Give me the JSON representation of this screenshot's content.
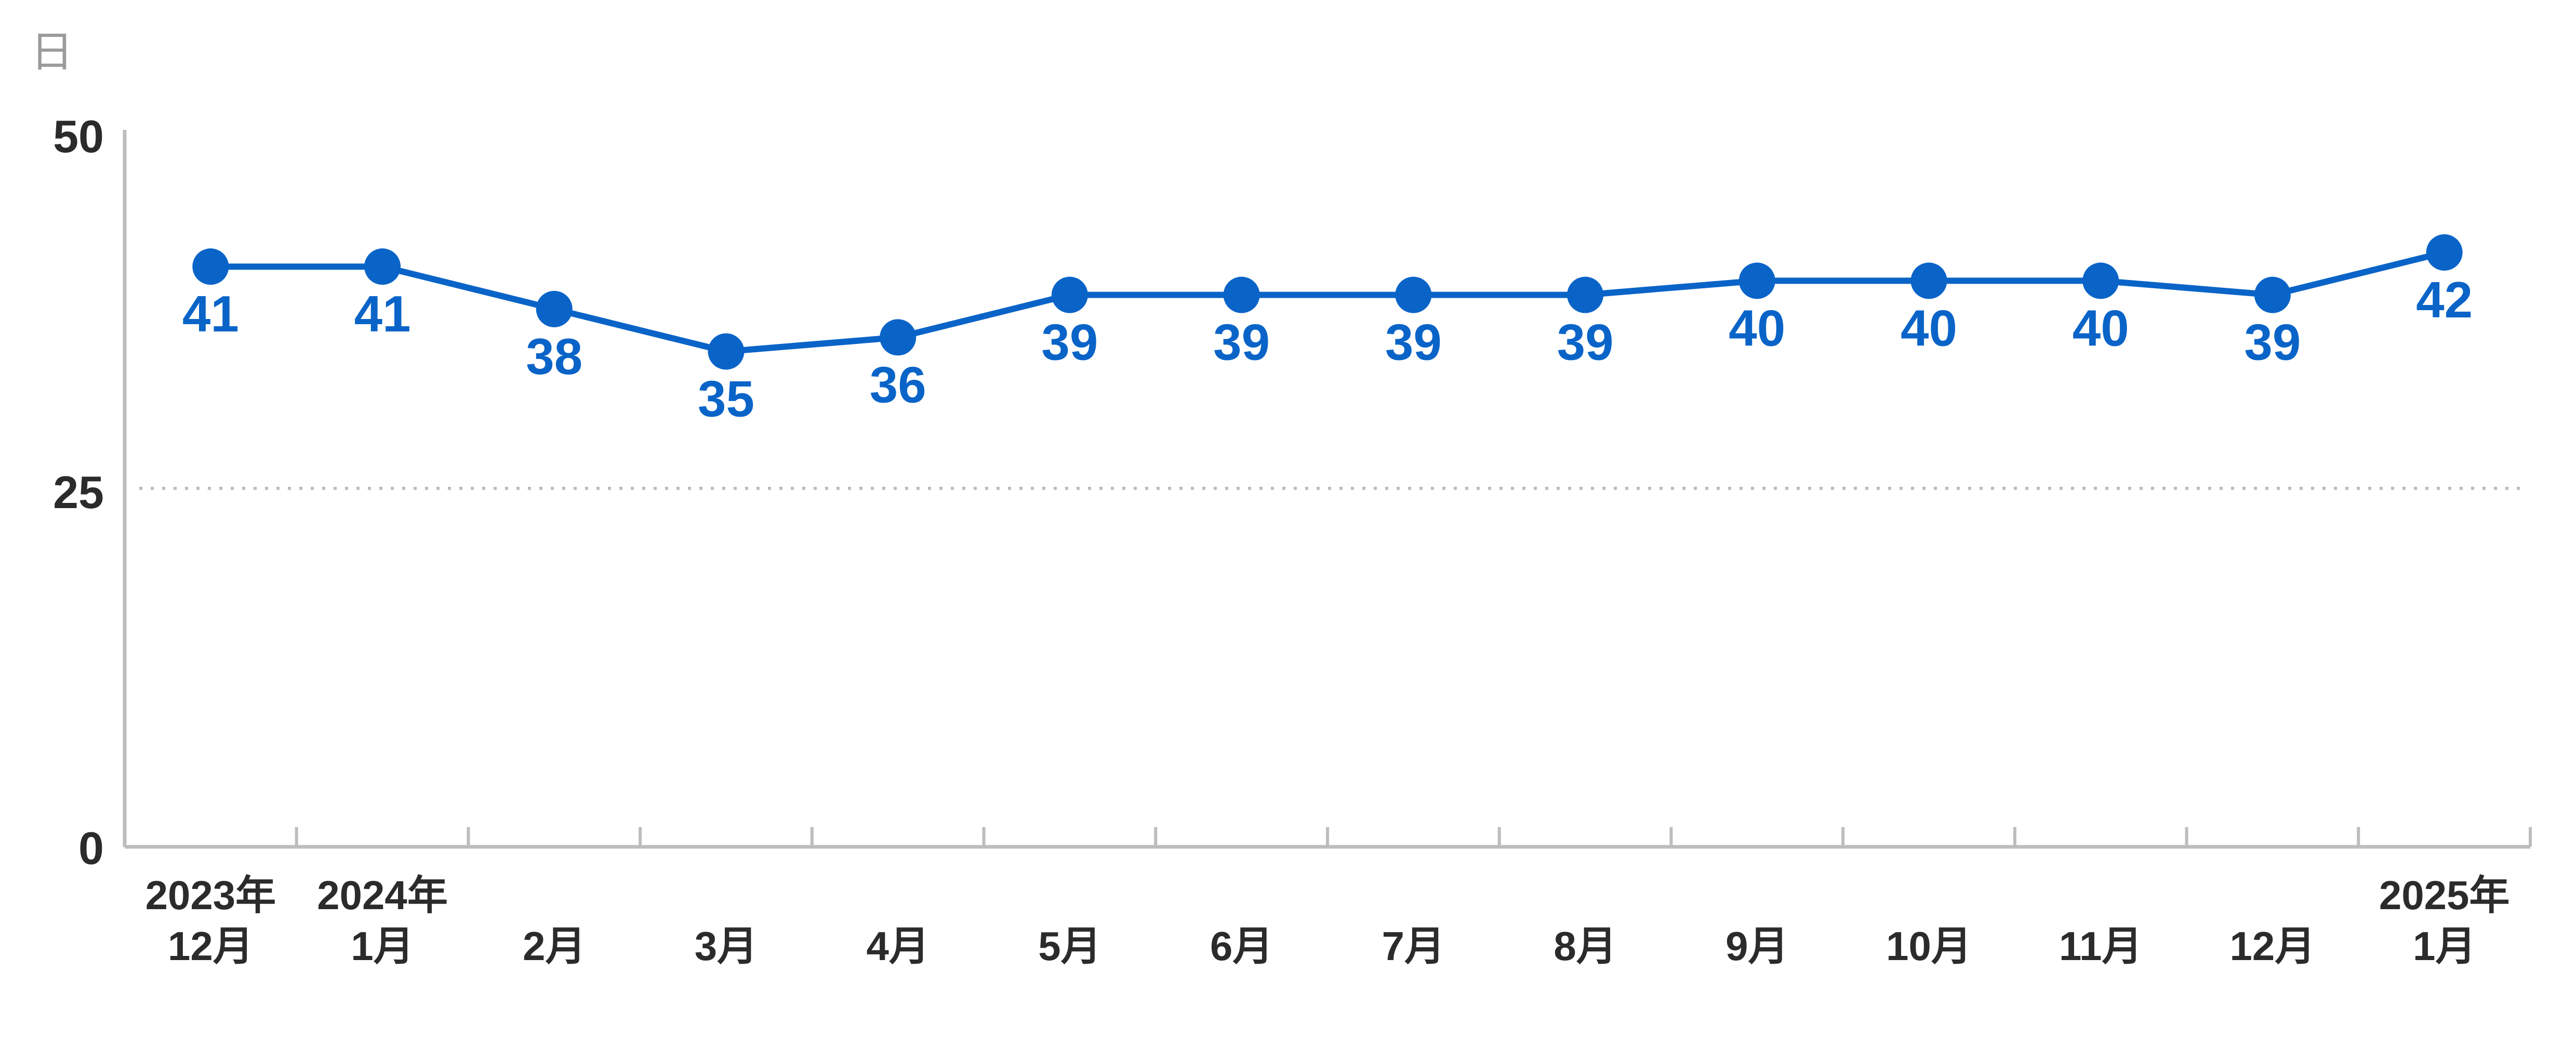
{
  "chart_data": {
    "type": "line",
    "unit_label": "日",
    "categories": [
      [
        "2023年",
        "12月"
      ],
      [
        "2024年",
        "1月"
      ],
      [
        "",
        "2月"
      ],
      [
        "",
        "3月"
      ],
      [
        "",
        "4月"
      ],
      [
        "",
        "5月"
      ],
      [
        "",
        "6月"
      ],
      [
        "",
        "7月"
      ],
      [
        "",
        "8月"
      ],
      [
        "",
        "9月"
      ],
      [
        "",
        "10月"
      ],
      [
        "",
        "11月"
      ],
      [
        "",
        "12月"
      ],
      [
        "2025年",
        "1月"
      ]
    ],
    "series": [
      {
        "values": [
          41,
          41,
          38,
          35,
          36,
          39,
          39,
          39,
          39,
          40,
          40,
          40,
          39,
          42
        ]
      }
    ],
    "yticks": [
      "0",
      "25",
      "50"
    ],
    "ylim": [
      0,
      50
    ],
    "grid": "dotted line at 25",
    "colors": {
      "line": "#0a64c8",
      "axis": "#bdbdbd",
      "grid": "#bdbdbd"
    }
  }
}
